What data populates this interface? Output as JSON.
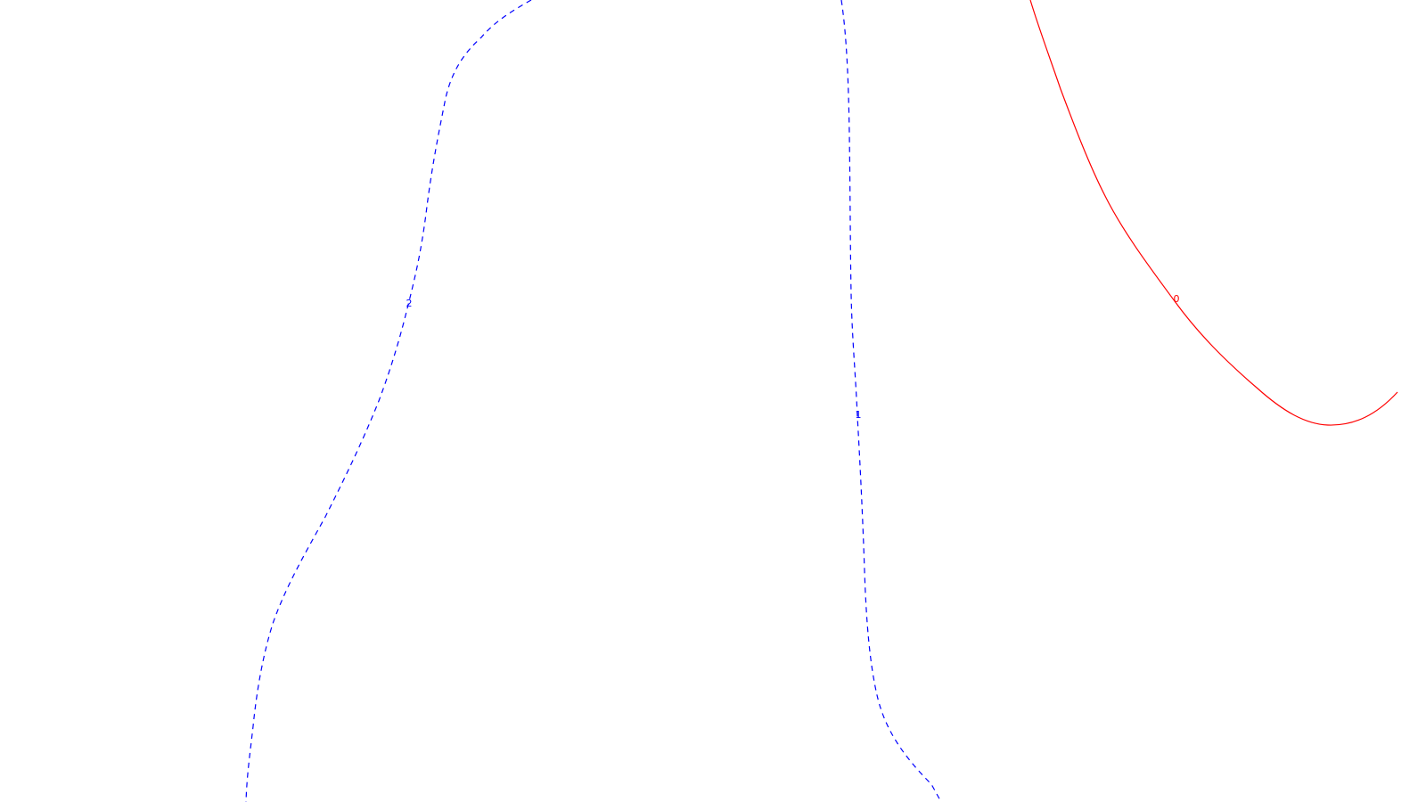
{
  "chart_data": {
    "type": "contour",
    "title": "",
    "xlabel": "",
    "ylabel": "",
    "grid": false,
    "legend": "none",
    "colors": {
      "background": "#ffffff",
      "negative": "#ff0000",
      "non_negative": "#0000ff"
    },
    "levels": [
      {
        "value": 0,
        "label": "0",
        "color": "#ff0000",
        "line_style": "solid"
      },
      {
        "value": 1,
        "label": "1",
        "color": "#0000ff",
        "line_style": "dashed"
      },
      {
        "value": 2,
        "label": "2",
        "color": "#0000ff",
        "line_style": "dashed"
      }
    ]
  }
}
